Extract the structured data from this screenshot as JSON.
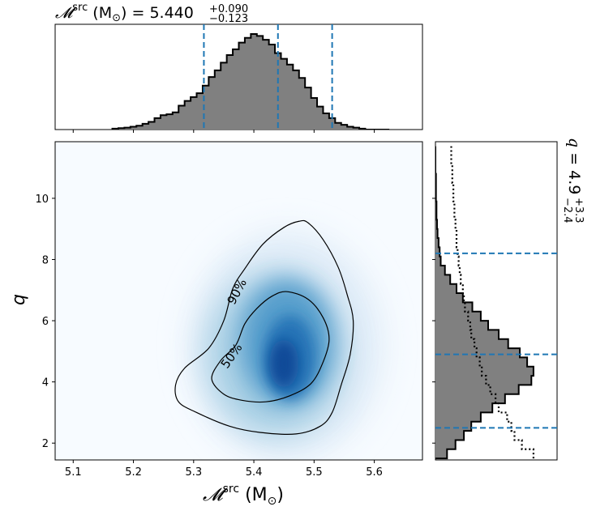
{
  "chart_data": [
    {
      "type": "area",
      "panel": "top-marginal-histogram",
      "title": "5.440",
      "title_upper": "+0.090",
      "title_lower": "−0.123",
      "title_variable": "𝓜",
      "title_superscript": "src",
      "title_unit": "M",
      "title_unit_sub": "⊙",
      "x": [
        5.17,
        5.18,
        5.19,
        5.2,
        5.21,
        5.22,
        5.23,
        5.24,
        5.25,
        5.26,
        5.27,
        5.28,
        5.29,
        5.3,
        5.31,
        5.32,
        5.33,
        5.34,
        5.35,
        5.36,
        5.37,
        5.38,
        5.39,
        5.4,
        5.41,
        5.42,
        5.43,
        5.44,
        5.45,
        5.46,
        5.47,
        5.48,
        5.49,
        5.5,
        5.51,
        5.52,
        5.53,
        5.54,
        5.55,
        5.56,
        5.57,
        5.58,
        5.59,
        5.6,
        5.61,
        5.62
      ],
      "values": [
        0.01,
        0.015,
        0.02,
        0.03,
        0.04,
        0.06,
        0.08,
        0.12,
        0.15,
        0.16,
        0.18,
        0.25,
        0.3,
        0.34,
        0.38,
        0.46,
        0.55,
        0.62,
        0.7,
        0.78,
        0.84,
        0.91,
        0.96,
        1.0,
        0.98,
        0.94,
        0.89,
        0.8,
        0.74,
        0.68,
        0.62,
        0.54,
        0.44,
        0.33,
        0.24,
        0.17,
        0.12,
        0.07,
        0.05,
        0.03,
        0.02,
        0.01,
        0.0,
        0.0,
        0.0,
        0.0
      ],
      "quantiles": [
        5.317,
        5.44,
        5.53
      ],
      "xlim": [
        5.07,
        5.68
      ],
      "color_fill": "#808080",
      "color_quantile": "#1f77b4"
    },
    {
      "type": "heatmap",
      "panel": "joint-density",
      "xlabel_variable": "𝓜",
      "xlabel_superscript": "src",
      "xlabel_unit": "M",
      "xlabel_unit_sub": "⊙",
      "ylabel": "q",
      "xlim": [
        5.07,
        5.68
      ],
      "ylim": [
        1.45,
        11.85
      ],
      "x_ticks": [
        "5.1",
        "5.2",
        "5.3",
        "5.4",
        "5.5",
        "5.6"
      ],
      "y_ticks": [
        "2",
        "4",
        "6",
        "8",
        "10"
      ],
      "density_peak": {
        "x": 5.455,
        "y": 4.6
      },
      "contours": [
        {
          "label": "90%",
          "points": [
            [
              5.49,
              9.2
            ],
            [
              5.515,
              8.65
            ],
            [
              5.54,
              7.75
            ],
            [
              5.555,
              6.85
            ],
            [
              5.565,
              6.0
            ],
            [
              5.56,
              4.9
            ],
            [
              5.545,
              3.9
            ],
            [
              5.53,
              3.0
            ],
            [
              5.51,
              2.55
            ],
            [
              5.47,
              2.3
            ],
            [
              5.41,
              2.35
            ],
            [
              5.36,
              2.55
            ],
            [
              5.305,
              3.0
            ],
            [
              5.275,
              3.35
            ],
            [
              5.27,
              3.9
            ],
            [
              5.285,
              4.45
            ],
            [
              5.325,
              5.1
            ],
            [
              5.35,
              6.0
            ],
            [
              5.365,
              7.05
            ],
            [
              5.385,
              7.7
            ],
            [
              5.415,
              8.5
            ],
            [
              5.45,
              9.05
            ],
            [
              5.475,
              9.25
            ]
          ]
        },
        {
          "label": "50%",
          "points": [
            [
              5.455,
              6.95
            ],
            [
              5.49,
              6.7
            ],
            [
              5.515,
              6.1
            ],
            [
              5.525,
              5.4
            ],
            [
              5.515,
              4.65
            ],
            [
              5.495,
              3.95
            ],
            [
              5.46,
              3.55
            ],
            [
              5.42,
              3.35
            ],
            [
              5.38,
              3.4
            ],
            [
              5.35,
              3.6
            ],
            [
              5.33,
              4.1
            ],
            [
              5.345,
              4.7
            ],
            [
              5.37,
              5.2
            ],
            [
              5.385,
              5.9
            ],
            [
              5.405,
              6.4
            ],
            [
              5.43,
              6.8
            ]
          ]
        }
      ],
      "colormap": "Blues"
    },
    {
      "type": "area",
      "panel": "right-marginal-histogram",
      "side_label_variable": "q",
      "side_label_value": "4.9",
      "side_label_upper": "+3.3",
      "side_label_lower": "−2.4",
      "bins_q": [
        1.5,
        1.8,
        2.1,
        2.4,
        2.7,
        3.0,
        3.3,
        3.6,
        3.9,
        4.2,
        4.5,
        4.8,
        5.1,
        5.4,
        5.7,
        6.0,
        6.3,
        6.6,
        6.9,
        7.2,
        7.5,
        7.8,
        8.1,
        8.4,
        8.7,
        9.0,
        9.3,
        9.6,
        9.9,
        10.2,
        10.5,
        10.8,
        11.1,
        11.4,
        11.7
      ],
      "histogram_values": [
        0.11,
        0.19,
        0.27,
        0.34,
        0.43,
        0.54,
        0.66,
        0.79,
        0.91,
        0.93,
        0.87,
        0.8,
        0.69,
        0.6,
        0.5,
        0.43,
        0.35,
        0.26,
        0.2,
        0.14,
        0.09,
        0.05,
        0.04,
        0.03,
        0.02,
        0.015,
        0.01,
        0.01,
        0.005,
        0.005,
        0.005,
        0.0,
        0.0,
        0.0
      ],
      "prior_values": [
        0.93,
        0.82,
        0.75,
        0.72,
        0.68,
        0.6,
        0.57,
        0.52,
        0.48,
        0.44,
        0.42,
        0.39,
        0.37,
        0.34,
        0.33,
        0.31,
        0.28,
        0.27,
        0.26,
        0.24,
        0.23,
        0.22,
        0.21,
        0.2,
        0.2,
        0.19,
        0.18,
        0.18,
        0.17,
        0.17,
        0.16,
        0.16,
        0.15,
        0.15
      ],
      "quantiles": [
        2.5,
        4.9,
        8.2
      ],
      "color_fill": "#808080",
      "color_quantile": "#1f77b4"
    }
  ]
}
